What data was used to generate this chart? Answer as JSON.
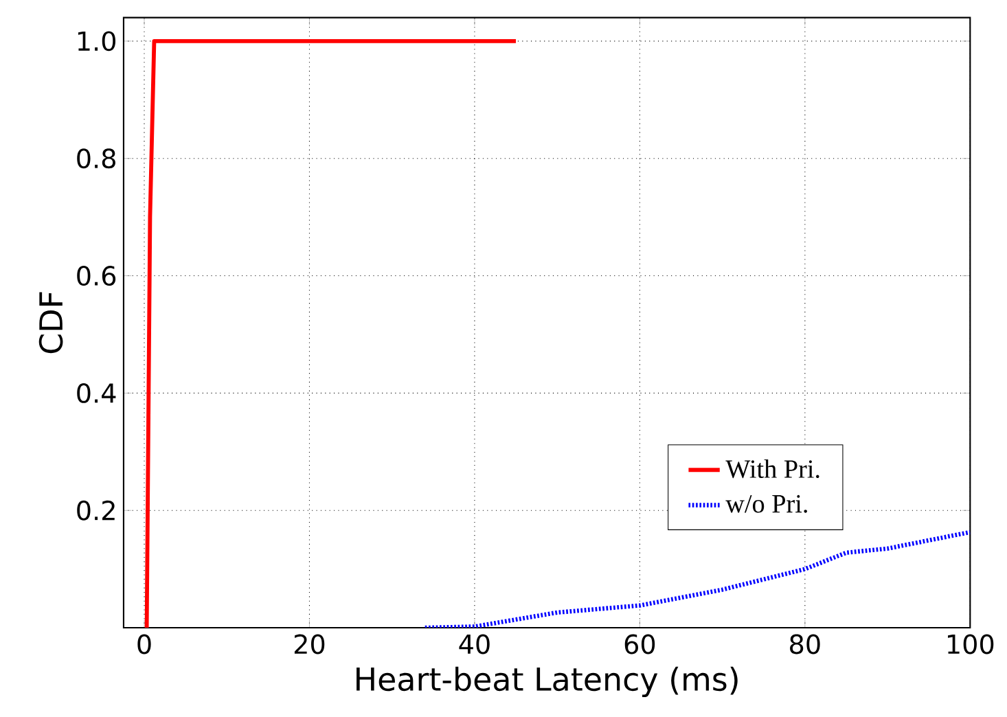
{
  "chart_data": {
    "type": "line",
    "xlabel": "Heart-beat Latency (ms)",
    "ylabel": "CDF",
    "xlim": [
      -2.5,
      100
    ],
    "ylim": [
      0,
      1.04
    ],
    "xticks": [
      0,
      20,
      40,
      60,
      80,
      100
    ],
    "yticks": [
      0.2,
      0.4,
      0.6,
      0.8,
      {
        "value": 1.0,
        "label": "1.0"
      }
    ],
    "grid": true,
    "legend": "bottom right",
    "series": [
      {
        "name": "With Pri.",
        "color": "#ff0000",
        "line_style": "solid",
        "x": [
          0.3,
          0.7,
          1.2,
          45
        ],
        "values": [
          0,
          0.7,
          1.0,
          1.0
        ]
      },
      {
        "name": "w/o Pri.",
        "color": "#0000ff",
        "line_style": "dotted",
        "x": [
          34,
          40,
          50,
          60,
          70,
          80,
          85,
          90,
          100
        ],
        "values": [
          0,
          0.002,
          0.026,
          0.038,
          0.065,
          0.1,
          0.128,
          0.135,
          0.163
        ]
      }
    ]
  }
}
